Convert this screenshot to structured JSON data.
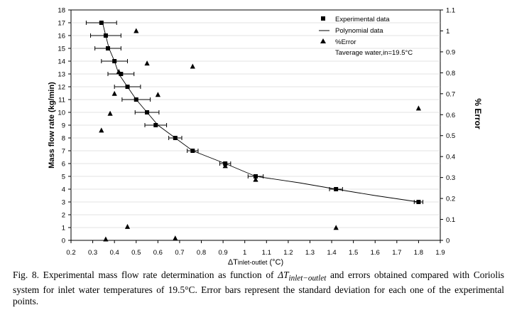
{
  "chart_data": {
    "type": "scatter",
    "xlabel": {
      "prefix": "ΔT",
      "sub": "inlet-outlet",
      "suffix": " (°C)"
    },
    "ylabel": "Mass flow rate (kg/min)",
    "y2label": "% Error",
    "xlim": [
      0.2,
      1.9
    ],
    "ylim": [
      0,
      18
    ],
    "y2lim": [
      0,
      1.1
    ],
    "x_ticks": [
      "0.2",
      "0.3",
      "0.4",
      "0.5",
      "0.6",
      "0.7",
      "0.8",
      "0.9",
      "1",
      "1.1",
      "1.2",
      "1.3",
      "1.4",
      "1.5",
      "1.6",
      "1.7",
      "1.8",
      "1.9"
    ],
    "y_ticks": [
      "0",
      "1",
      "2",
      "3",
      "4",
      "5",
      "6",
      "7",
      "8",
      "9",
      "10",
      "11",
      "12",
      "13",
      "14",
      "15",
      "16",
      "17",
      "18"
    ],
    "y2_ticks": [
      "0",
      "0.1",
      "0.2",
      "0.3",
      "0.4",
      "0.5",
      "0.6",
      "0.7",
      "0.8",
      "0.9",
      "1",
      "1.1"
    ],
    "legend": {
      "position": "top-right",
      "experimental": "Experimental data",
      "polynomial": "Polynomial data",
      "error": "%Error",
      "note": "Taverage water,in=19.5°C"
    },
    "series": [
      {
        "name": "Experimental data",
        "axis": "left",
        "marker": "square",
        "points": [
          {
            "x": 0.34,
            "y": 17,
            "err": 0.07
          },
          {
            "x": 0.36,
            "y": 16,
            "err": 0.07
          },
          {
            "x": 0.37,
            "y": 15,
            "err": 0.06
          },
          {
            "x": 0.4,
            "y": 14,
            "err": 0.06
          },
          {
            "x": 0.43,
            "y": 13,
            "err": 0.06
          },
          {
            "x": 0.46,
            "y": 12,
            "err": 0.06
          },
          {
            "x": 0.5,
            "y": 11,
            "err": 0.065
          },
          {
            "x": 0.55,
            "y": 10,
            "err": 0.055
          },
          {
            "x": 0.59,
            "y": 9,
            "err": 0.05
          },
          {
            "x": 0.68,
            "y": 8,
            "err": 0.03
          },
          {
            "x": 0.76,
            "y": 7,
            "err": 0.025
          },
          {
            "x": 0.91,
            "y": 6,
            "err": 0.025
          },
          {
            "x": 1.05,
            "y": 5,
            "err": 0.035
          },
          {
            "x": 1.42,
            "y": 4,
            "err": 0.03
          },
          {
            "x": 1.8,
            "y": 3,
            "err": 0.02
          }
        ]
      },
      {
        "name": "Polynomial data",
        "axis": "left",
        "line": true,
        "points": [
          {
            "x": 0.345,
            "y": 17
          },
          {
            "x": 0.36,
            "y": 16
          },
          {
            "x": 0.375,
            "y": 15
          },
          {
            "x": 0.4,
            "y": 14
          },
          {
            "x": 0.42,
            "y": 13
          },
          {
            "x": 0.46,
            "y": 12
          },
          {
            "x": 0.5,
            "y": 11
          },
          {
            "x": 0.55,
            "y": 10
          },
          {
            "x": 0.6,
            "y": 9
          },
          {
            "x": 0.68,
            "y": 8
          },
          {
            "x": 0.76,
            "y": 7
          },
          {
            "x": 0.91,
            "y": 6
          },
          {
            "x": 1.05,
            "y": 5
          },
          {
            "x": 1.25,
            "y": 4.5
          },
          {
            "x": 1.42,
            "y": 4
          },
          {
            "x": 1.6,
            "y": 3.5
          },
          {
            "x": 1.8,
            "y": 3
          }
        ]
      },
      {
        "name": "%Error",
        "axis": "right",
        "marker": "triangle",
        "points": [
          {
            "x": 0.5,
            "y": 1.0
          },
          {
            "x": 0.55,
            "y": 0.845
          },
          {
            "x": 0.76,
            "y": 0.83
          },
          {
            "x": 0.42,
            "y": 0.805
          },
          {
            "x": 0.4,
            "y": 0.7
          },
          {
            "x": 0.6,
            "y": 0.695
          },
          {
            "x": 1.8,
            "y": 0.63
          },
          {
            "x": 0.38,
            "y": 0.605
          },
          {
            "x": 0.34,
            "y": 0.525
          },
          {
            "x": 0.91,
            "y": 0.355
          },
          {
            "x": 1.05,
            "y": 0.29
          },
          {
            "x": 0.46,
            "y": 0.065
          },
          {
            "x": 1.42,
            "y": 0.06
          },
          {
            "x": 0.36,
            "y": 0.005
          },
          {
            "x": 0.68,
            "y": 0.01
          }
        ]
      }
    ]
  },
  "caption": {
    "part1": "Fig. 8. Experimental mass flow rate determination as function of ",
    "math_base": "ΔT",
    "math_sub": "inlet−outlet",
    "part2": " and errors obtained compared with Coriolis system for inlet water temperatures of 19.5°C. Error bars represent the standard deviation for each one of the experimental points."
  }
}
